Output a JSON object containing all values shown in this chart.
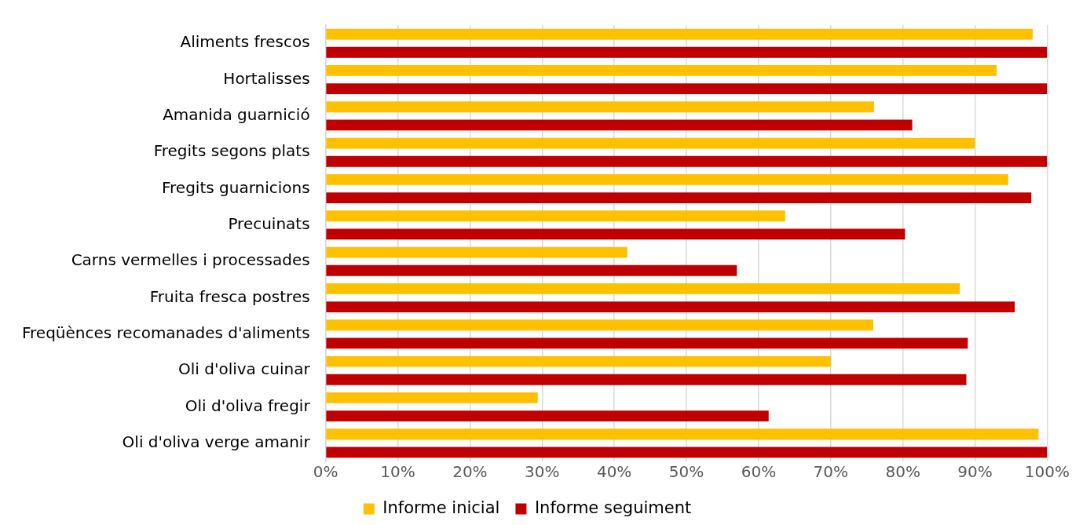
{
  "chart_data": {
    "type": "bar",
    "orientation": "horizontal",
    "categories": [
      "Aliments frescos",
      "Hortalisses",
      "Amanida guarnició",
      "Fregits segons plats",
      "Fregits guarnicions",
      "Precuinats",
      "Carns vermelles i processades",
      "Fruita fresca postres",
      "Freqüènces recomanades d'aliments",
      "Oli d'oliva cuinar",
      "Oli d'oliva fregir",
      "Oli d'oliva verge amanir"
    ],
    "series": [
      {
        "name": "Informe inicial",
        "color": "#ffc000",
        "values": [
          98,
          93,
          76,
          90,
          94.6,
          63.7,
          41.8,
          87.9,
          75.9,
          70,
          29.4,
          98.8
        ]
      },
      {
        "name": "Informe seguiment",
        "color": "#c00000",
        "values": [
          100,
          100,
          81.3,
          100,
          97.8,
          80.3,
          57,
          95.5,
          89,
          88.8,
          61.4,
          100
        ]
      }
    ],
    "xlim": [
      0,
      100
    ],
    "xticks": [
      {
        "value": 0,
        "label": "0%"
      },
      {
        "value": 10,
        "label": "10%"
      },
      {
        "value": 20,
        "label": "20%"
      },
      {
        "value": 30,
        "label": "30%"
      },
      {
        "value": 40,
        "label": "40%"
      },
      {
        "value": 50,
        "label": "50%"
      },
      {
        "value": 60,
        "label": "60%"
      },
      {
        "value": 70,
        "label": "70%"
      },
      {
        "value": 80,
        "label": "80%"
      },
      {
        "value": 90,
        "label": "90%"
      },
      {
        "value": 100,
        "label": "100%"
      }
    ],
    "grid": "x",
    "legend": "bottom"
  }
}
